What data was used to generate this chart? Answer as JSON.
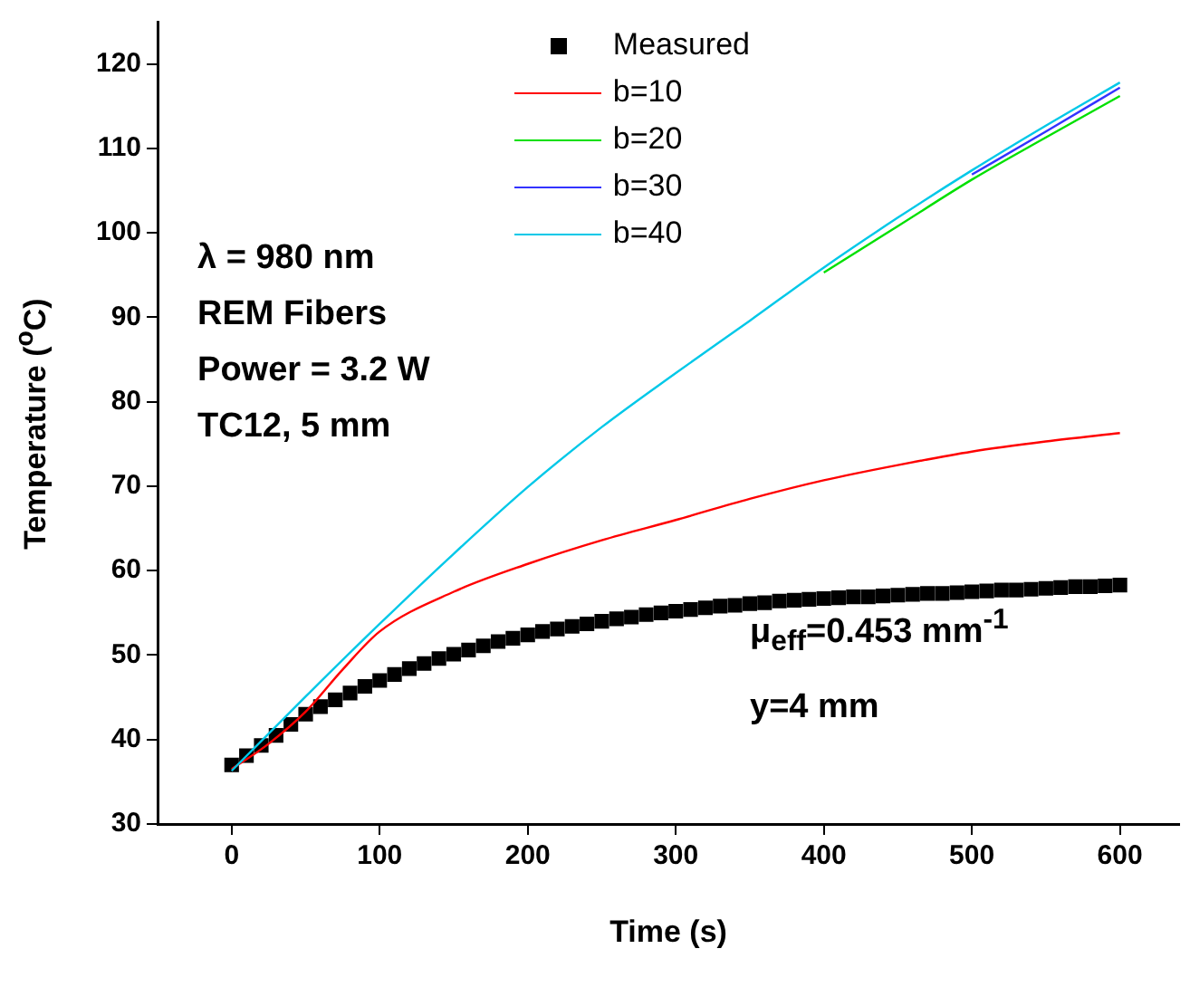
{
  "chart_data": {
    "type": "line",
    "xlabel": "Time (s)",
    "ylabel": "Temperature ($^{o}$C)",
    "xlim": [
      -50,
      640
    ],
    "xticks": [
      0,
      100,
      200,
      300,
      400,
      500,
      600
    ],
    "ylim": [
      30,
      125
    ],
    "yticks": [
      30,
      40,
      50,
      60,
      70,
      80,
      90,
      100,
      110,
      120
    ],
    "grid": false,
    "legend": "top",
    "line_style": "solid",
    "marker": "none",
    "annotations": [
      "λ = 980 nm",
      "REM Fibers",
      "Power = 3.2 W",
      "TC12, 5 mm",
      "μ$_{eff}$=0.453 mm$^{-1}$",
      "y=4 mm"
    ],
    "series": [
      {
        "name": "Measured",
        "type": "scatter",
        "marker": "square",
        "color": "#000000",
        "x": [
          0,
          10,
          20,
          30,
          40,
          50,
          60,
          70,
          80,
          90,
          100,
          110,
          120,
          130,
          140,
          150,
          160,
          170,
          180,
          190,
          200,
          210,
          220,
          230,
          240,
          250,
          260,
          270,
          280,
          290,
          300,
          310,
          320,
          330,
          340,
          350,
          360,
          370,
          380,
          390,
          400,
          410,
          420,
          430,
          440,
          450,
          460,
          470,
          480,
          490,
          500,
          510,
          520,
          530,
          540,
          550,
          560,
          570,
          580,
          590,
          600
        ],
        "values": [
          37.0,
          38.1,
          39.3,
          40.5,
          41.8,
          43.0,
          43.9,
          44.7,
          45.5,
          46.3,
          47.0,
          47.7,
          48.4,
          49.0,
          49.6,
          50.1,
          50.6,
          51.1,
          51.6,
          52.0,
          52.4,
          52.8,
          53.1,
          53.4,
          53.7,
          54.0,
          54.3,
          54.5,
          54.8,
          55.0,
          55.2,
          55.4,
          55.6,
          55.8,
          55.9,
          56.1,
          56.2,
          56.4,
          56.5,
          56.6,
          56.7,
          56.8,
          56.9,
          56.9,
          57.0,
          57.1,
          57.2,
          57.3,
          57.3,
          57.4,
          57.5,
          57.6,
          57.7,
          57.7,
          57.8,
          57.9,
          58.0,
          58.1,
          58.1,
          58.2,
          58.3
        ]
      },
      {
        "name": "b=10",
        "color": "#ff0000",
        "x": [
          0,
          25,
          50,
          75,
          100,
          150,
          200,
          250,
          300,
          350,
          400,
          450,
          500,
          550,
          600
        ],
        "values": [
          36.5,
          39.5,
          43.3,
          48.3,
          52.8,
          57.5,
          60.8,
          63.6,
          66.0,
          68.5,
          70.7,
          72.5,
          74.1,
          75.3,
          76.3
        ]
      },
      {
        "name": "b=20",
        "color": "#00e000",
        "x": [
          400,
          450,
          500,
          550,
          600
        ],
        "values": [
          95.3,
          100.8,
          106.3,
          111.3,
          116.2
        ]
      },
      {
        "name": "b=30",
        "color": "#3333ff",
        "x": [
          500,
          550,
          600
        ],
        "values": [
          106.9,
          112.0,
          117.2
        ]
      },
      {
        "name": "b=40",
        "color": "#00c8e8",
        "x": [
          0,
          50,
          100,
          150,
          200,
          250,
          300,
          350,
          400,
          450,
          500,
          550,
          600
        ],
        "values": [
          36.3,
          45.1,
          53.7,
          62.0,
          69.9,
          77.0,
          83.4,
          89.6,
          95.9,
          101.8,
          107.4,
          112.7,
          117.8
        ]
      }
    ]
  }
}
